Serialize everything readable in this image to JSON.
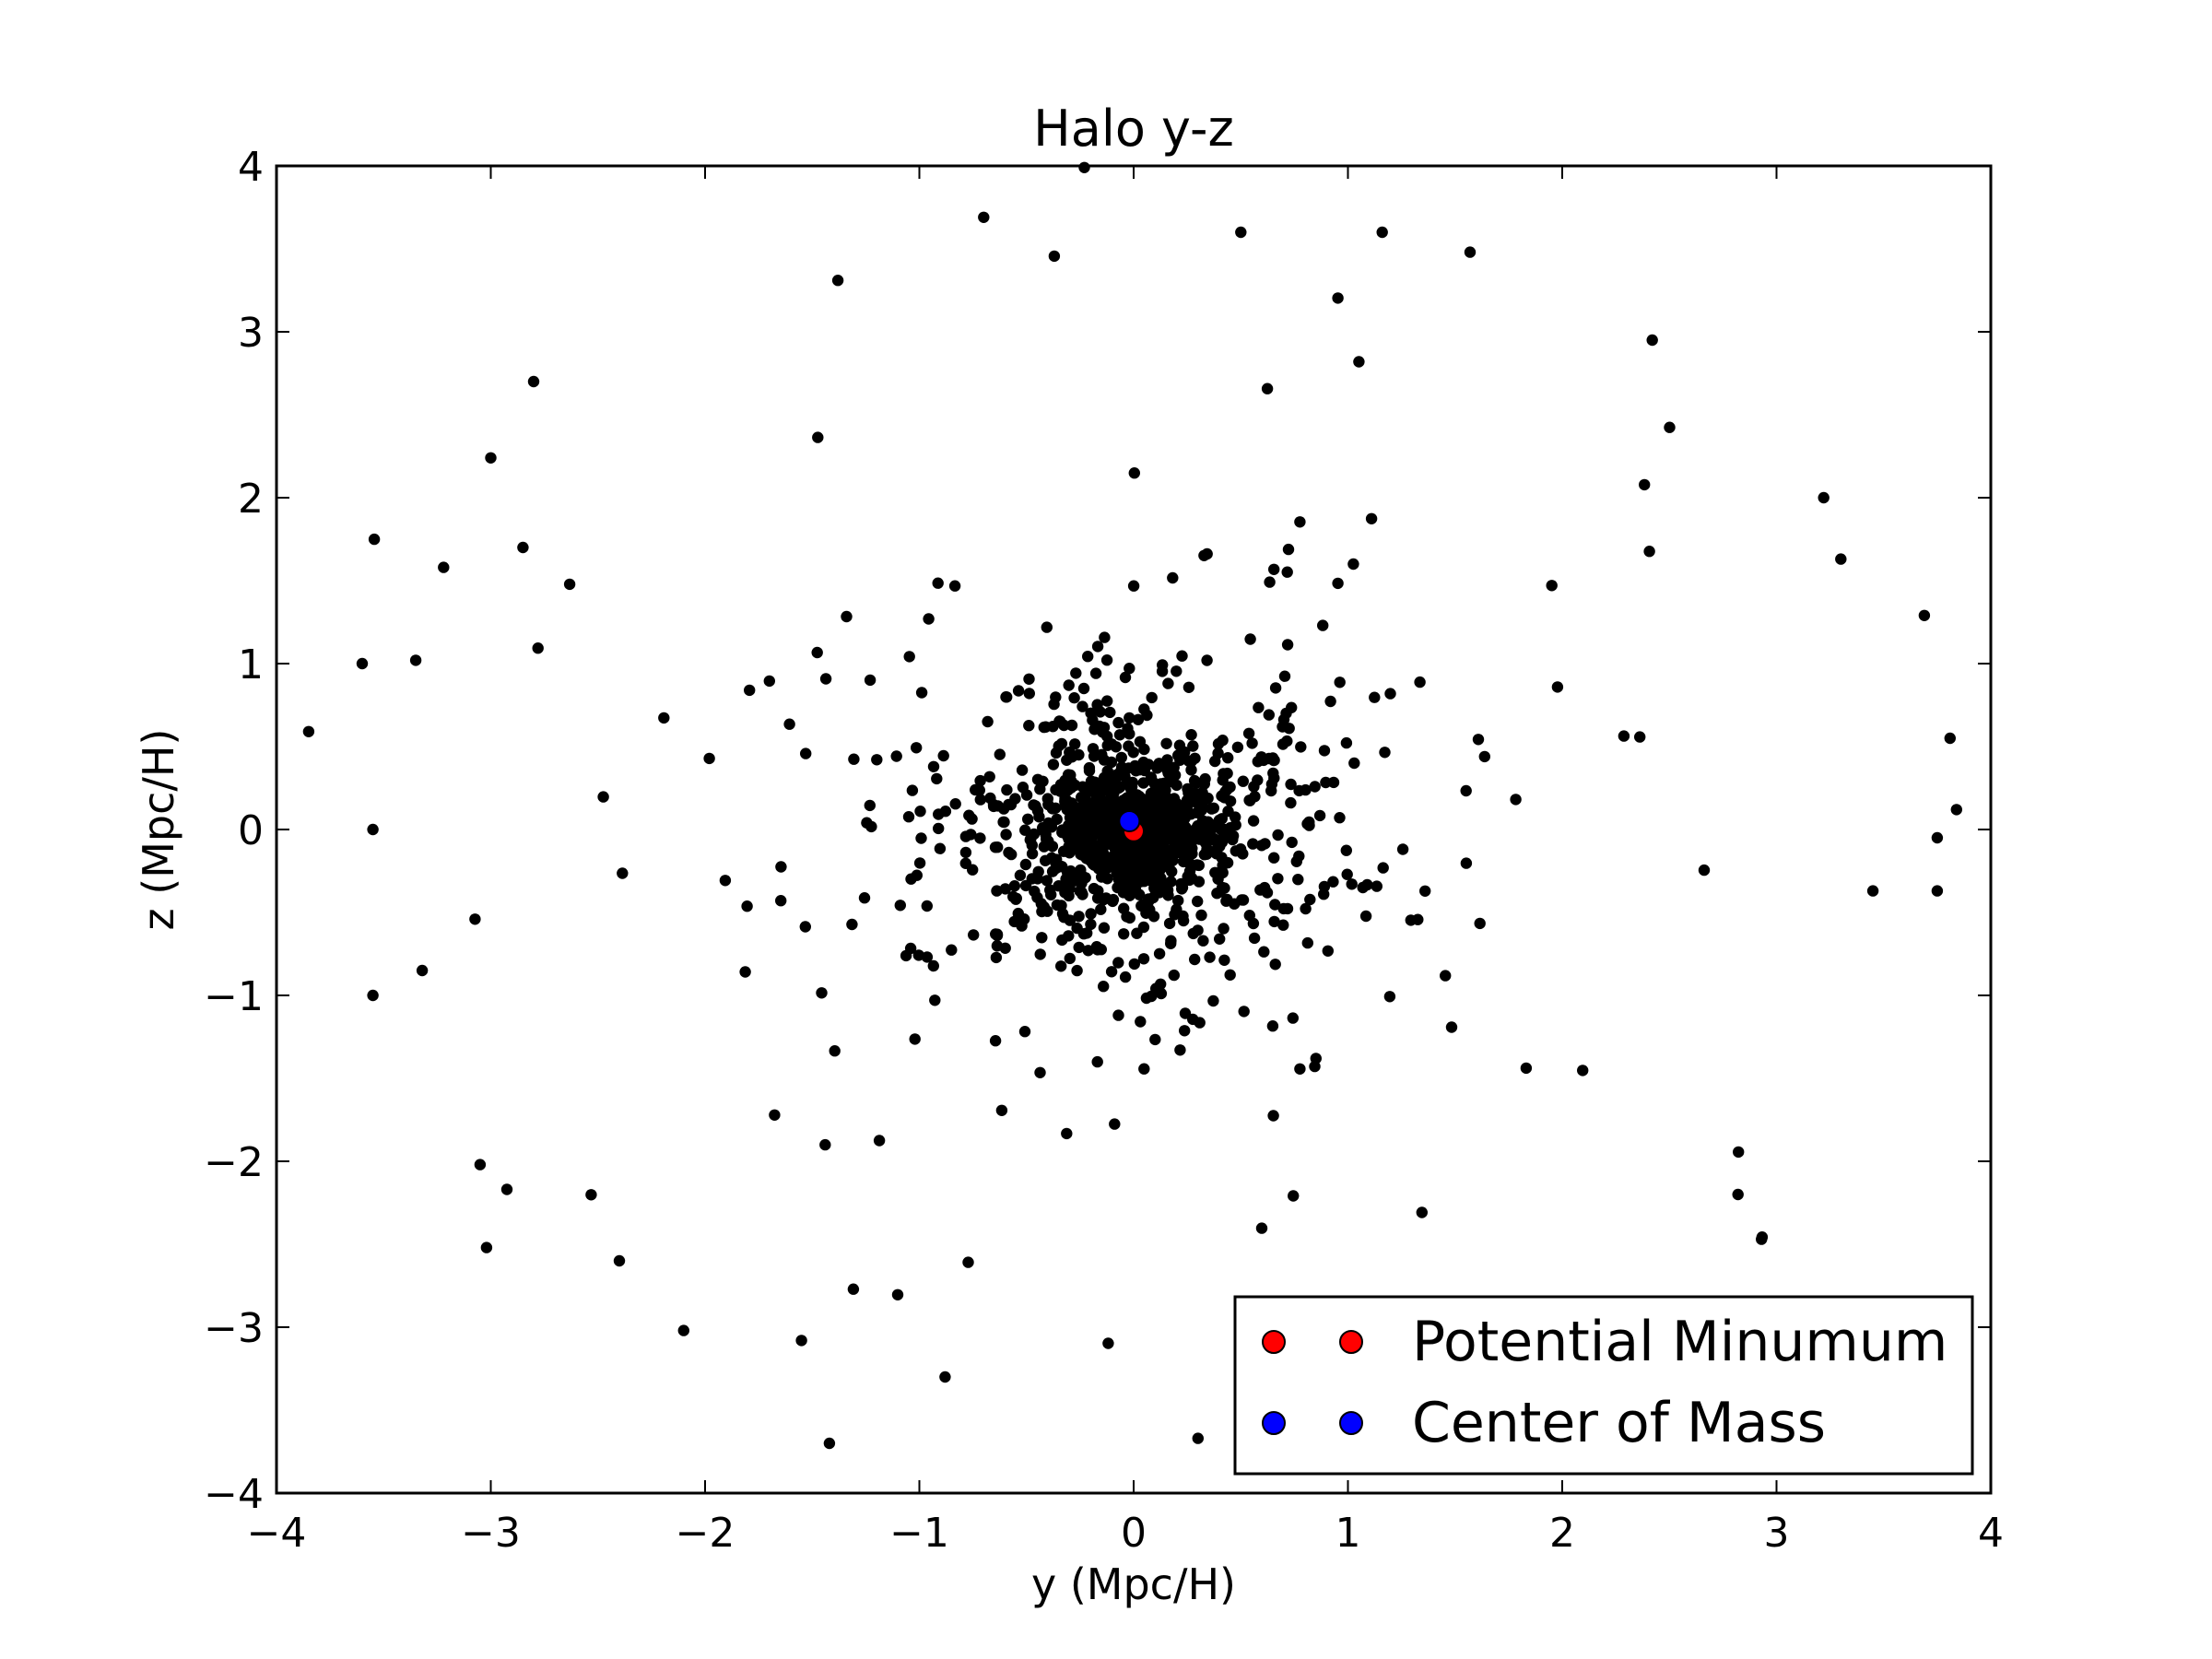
{
  "chart_data": {
    "type": "scatter",
    "title": "Halo y-z",
    "xlabel": "y (Mpc/H)",
    "ylabel": "z (Mpc/H)",
    "xlim": [
      -4,
      4
    ],
    "ylim": [
      -4,
      4
    ],
    "xticks": [
      "−4",
      "−3",
      "−2",
      "−1",
      "0",
      "1",
      "2",
      "3",
      "4"
    ],
    "yticks": [
      "−4",
      "−3",
      "−2",
      "−1",
      "0",
      "1",
      "2",
      "3",
      "4"
    ],
    "grid": false,
    "legend_position": "lower-right",
    "series": [
      {
        "name": "",
        "color": "#000000",
        "distribution": "halo particle cloud, roughly isotropic, concentrated at origin, radius about 3.9 Mpc/H",
        "count": 2000,
        "points": [
          {
            "x": -3.85,
            "y": 0.59
          },
          {
            "x": -3.6,
            "y": 1.0
          },
          {
            "x": -3.55,
            "y": 0.0
          },
          {
            "x": -3.55,
            "y": -1.0
          },
          {
            "x": -3.35,
            "y": 1.02
          },
          {
            "x": -3.32,
            "y": -0.85
          },
          {
            "x": -3.22,
            "y": 1.58
          },
          {
            "x": -3.05,
            "y": -2.02
          },
          {
            "x": -3.02,
            "y": -2.52
          },
          {
            "x": -3.0,
            "y": 2.24
          },
          {
            "x": -2.85,
            "y": 1.7
          },
          {
            "x": -2.8,
            "y": 2.7
          },
          {
            "x": -2.4,
            "y": -2.6
          },
          {
            "x": -2.1,
            "y": -3.02
          },
          {
            "x": -1.55,
            "y": -3.08
          },
          {
            "x": -1.42,
            "y": -3.7
          },
          {
            "x": -1.38,
            "y": 3.31
          },
          {
            "x": -0.88,
            "y": -3.3
          },
          {
            "x": -0.7,
            "y": 3.69
          },
          {
            "x": -0.23,
            "y": 3.99
          },
          {
            "x": 0.3,
            "y": -3.67
          },
          {
            "x": 0.5,
            "y": 3.6
          },
          {
            "x": 1.16,
            "y": 3.6
          },
          {
            "x": 1.57,
            "y": 3.48
          },
          {
            "x": 2.42,
            "y": 2.95
          },
          {
            "x": 2.82,
            "y": -2.2
          },
          {
            "x": 2.93,
            "y": -2.47
          },
          {
            "x": 3.22,
            "y": 2.0
          },
          {
            "x": 3.3,
            "y": 1.63
          },
          {
            "x": 3.45,
            "y": -0.37
          },
          {
            "x": 3.69,
            "y": 1.29
          },
          {
            "x": 3.75,
            "y": -0.05
          },
          {
            "x": 3.75,
            "y": -0.37
          },
          {
            "x": 3.81,
            "y": 0.55
          },
          {
            "x": 3.84,
            "y": 0.12
          }
        ]
      },
      {
        "name": "Potential Minumum",
        "color": "#ff0000",
        "points": [
          {
            "x": 0.0,
            "y": -0.01
          }
        ]
      },
      {
        "name": "Center of Mass",
        "color": "#0000ff",
        "points": [
          {
            "x": -0.02,
            "y": 0.05
          }
        ]
      }
    ]
  }
}
